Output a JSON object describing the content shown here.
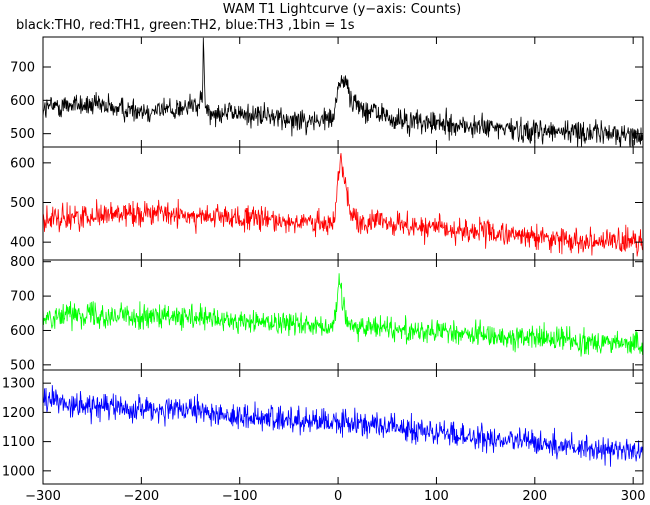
{
  "chart_data": {
    "type": "line",
    "title": "WAM T1 Lightcurve (y−axis: Counts)",
    "subtitle": "black:TH0, red:TH1, green:TH2, blue:TH3 ,1bin = 1s",
    "xlim": [
      -300,
      310
    ],
    "x_ticks": [
      -300,
      -200,
      -100,
      0,
      100,
      200,
      300
    ],
    "x_tick_labels": [
      "−300",
      "−200",
      "−100",
      "0",
      "100",
      "200",
      "300"
    ],
    "panels": [
      {
        "color": "#000000",
        "ylim": [
          460,
          790
        ],
        "y_ticks": [
          500,
          600,
          700
        ],
        "series_points": [
          [
            -300,
            575
          ],
          [
            -270,
            590
          ],
          [
            -240,
            580
          ],
          [
            -200,
            570
          ],
          [
            -160,
            575
          ],
          [
            -138,
            590
          ],
          [
            -137,
            790
          ],
          [
            -135,
            570
          ],
          [
            -100,
            560
          ],
          [
            -60,
            548
          ],
          [
            -20,
            540
          ],
          [
            -5,
            545
          ],
          [
            0,
            640
          ],
          [
            3,
            665
          ],
          [
            8,
            655
          ],
          [
            14,
            600
          ],
          [
            25,
            575
          ],
          [
            40,
            560
          ],
          [
            60,
            540
          ],
          [
            100,
            530
          ],
          [
            150,
            518
          ],
          [
            200,
            510
          ],
          [
            250,
            505
          ],
          [
            300,
            495
          ],
          [
            310,
            492
          ]
        ]
      },
      {
        "color": "#ff0000",
        "ylim": [
          355,
          640
        ],
        "y_ticks": [
          400,
          500,
          600
        ],
        "series_points": [
          [
            -300,
            455
          ],
          [
            -270,
            462
          ],
          [
            -240,
            470
          ],
          [
            -200,
            475
          ],
          [
            -170,
            470
          ],
          [
            -150,
            465
          ],
          [
            -100,
            460
          ],
          [
            -60,
            455
          ],
          [
            -20,
            445
          ],
          [
            -8,
            440
          ],
          [
            -3,
            470
          ],
          [
            0,
            560
          ],
          [
            3,
            615
          ],
          [
            7,
            560
          ],
          [
            13,
            480
          ],
          [
            20,
            445
          ],
          [
            40,
            450
          ],
          [
            60,
            445
          ],
          [
            100,
            435
          ],
          [
            150,
            425
          ],
          [
            200,
            412
          ],
          [
            250,
            405
          ],
          [
            300,
            398
          ],
          [
            310,
            395
          ]
        ]
      },
      {
        "color": "#00ff00",
        "ylim": [
          485,
          805
        ],
        "y_ticks": [
          500,
          600,
          700,
          800
        ],
        "series_points": [
          [
            -300,
            640
          ],
          [
            -270,
            650
          ],
          [
            -240,
            645
          ],
          [
            -200,
            640
          ],
          [
            -150,
            635
          ],
          [
            -100,
            625
          ],
          [
            -60,
            625
          ],
          [
            -20,
            615
          ],
          [
            -5,
            612
          ],
          [
            -1,
            660
          ],
          [
            1,
            760
          ],
          [
            4,
            700
          ],
          [
            9,
            630
          ],
          [
            20,
            605
          ],
          [
            40,
            615
          ],
          [
            60,
            605
          ],
          [
            100,
            595
          ],
          [
            150,
            585
          ],
          [
            200,
            578
          ],
          [
            250,
            570
          ],
          [
            300,
            560
          ],
          [
            310,
            555
          ]
        ]
      },
      {
        "color": "#0000ff",
        "ylim": [
          955,
          1345
        ],
        "y_ticks": [
          1000,
          1100,
          1200,
          1300
        ],
        "series_points": [
          [
            -300,
            1245
          ],
          [
            -270,
            1225
          ],
          [
            -240,
            1218
          ],
          [
            -200,
            1212
          ],
          [
            -150,
            1205
          ],
          [
            -100,
            1185
          ],
          [
            -60,
            1175
          ],
          [
            -20,
            1170
          ],
          [
            0,
            1165
          ],
          [
            40,
            1155
          ],
          [
            80,
            1140
          ],
          [
            120,
            1120
          ],
          [
            160,
            1105
          ],
          [
            200,
            1095
          ],
          [
            250,
            1080
          ],
          [
            300,
            1065
          ],
          [
            310,
            1060
          ]
        ]
      }
    ]
  }
}
